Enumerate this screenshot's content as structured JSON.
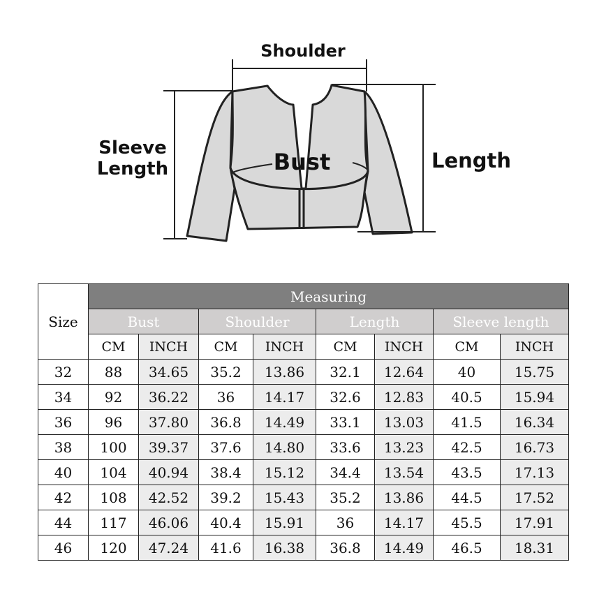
{
  "diagram": {
    "labels": {
      "shoulder": "Shoulder",
      "bust": "Bust",
      "length": "Length",
      "sleeve_line1": "Sleeve",
      "sleeve_line2": "Length"
    },
    "fill_color": "#d9d9d9"
  },
  "table": {
    "size_header": "Size",
    "group_header": "Measuring",
    "columns": [
      "Bust",
      "Shoulder",
      "Length",
      "Sleeve length"
    ],
    "unit_cm": "CM",
    "unit_inch": "INCH",
    "rows": [
      [
        "32",
        "88",
        "34.65",
        "35.2",
        "13.86",
        "32.1",
        "12.64",
        "40",
        "15.75"
      ],
      [
        "34",
        "92",
        "36.22",
        "36",
        "14.17",
        "32.6",
        "12.83",
        "40.5",
        "15.94"
      ],
      [
        "36",
        "96",
        "37.80",
        "36.8",
        "14.49",
        "33.1",
        "13.03",
        "41.5",
        "16.34"
      ],
      [
        "38",
        "100",
        "39.37",
        "37.6",
        "14.80",
        "33.6",
        "13.23",
        "42.5",
        "16.73"
      ],
      [
        "40",
        "104",
        "40.94",
        "38.4",
        "15.12",
        "34.4",
        "13.54",
        "43.5",
        "17.13"
      ],
      [
        "42",
        "108",
        "42.52",
        "39.2",
        "15.43",
        "35.2",
        "13.86",
        "44.5",
        "17.52"
      ],
      [
        "44",
        "117",
        "46.06",
        "40.4",
        "15.91",
        "36",
        "14.17",
        "45.5",
        "17.91"
      ],
      [
        "46",
        "120",
        "47.24",
        "41.6",
        "16.38",
        "36.8",
        "14.49",
        "46.5",
        "18.31"
      ]
    ],
    "colors": {
      "group_header": "#7f7f7f",
      "column_header": "#d0cece",
      "inch_cell": "#ececec"
    }
  }
}
